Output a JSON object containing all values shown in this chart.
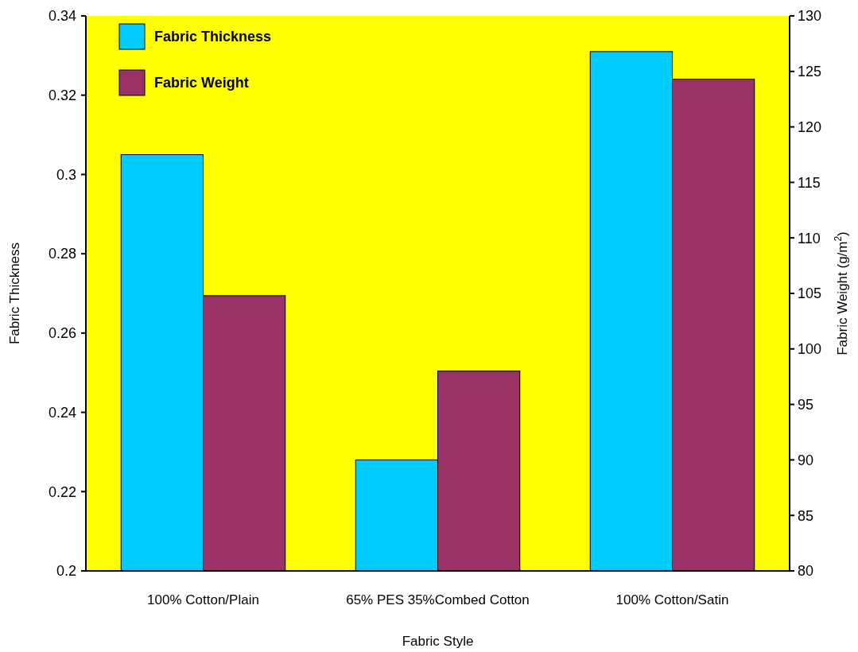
{
  "chart_data": {
    "type": "bar",
    "categories": [
      "100% Cotton/Plain",
      "65% PES 35%Combed Cotton",
      "100% Cotton/Satin"
    ],
    "series": [
      {
        "name": "Fabric Thickness",
        "color": "#00ccff",
        "values": [
          0.305,
          0.228,
          0.331
        ]
      },
      {
        "name": "Fabric Weight",
        "color": "#993366",
        "values": [
          104.8,
          98,
          124.3
        ],
        "axis": "y2"
      }
    ],
    "xlabel": "Fabric Style",
    "ylabel": "Fabric Thickness",
    "y2label": "Fabric Weight (g/m$^{2}$)",
    "ylim": [
      0.2,
      0.34
    ],
    "yticks": [
      0.2,
      0.22,
      0.24,
      0.26,
      0.28,
      0.3,
      0.32,
      0.34
    ],
    "y2lim": [
      80,
      130
    ],
    "y2ticks": [
      80,
      85,
      90,
      95,
      100,
      105,
      110,
      115,
      120,
      125,
      130
    ],
    "legend": "top left",
    "grid": false
  }
}
